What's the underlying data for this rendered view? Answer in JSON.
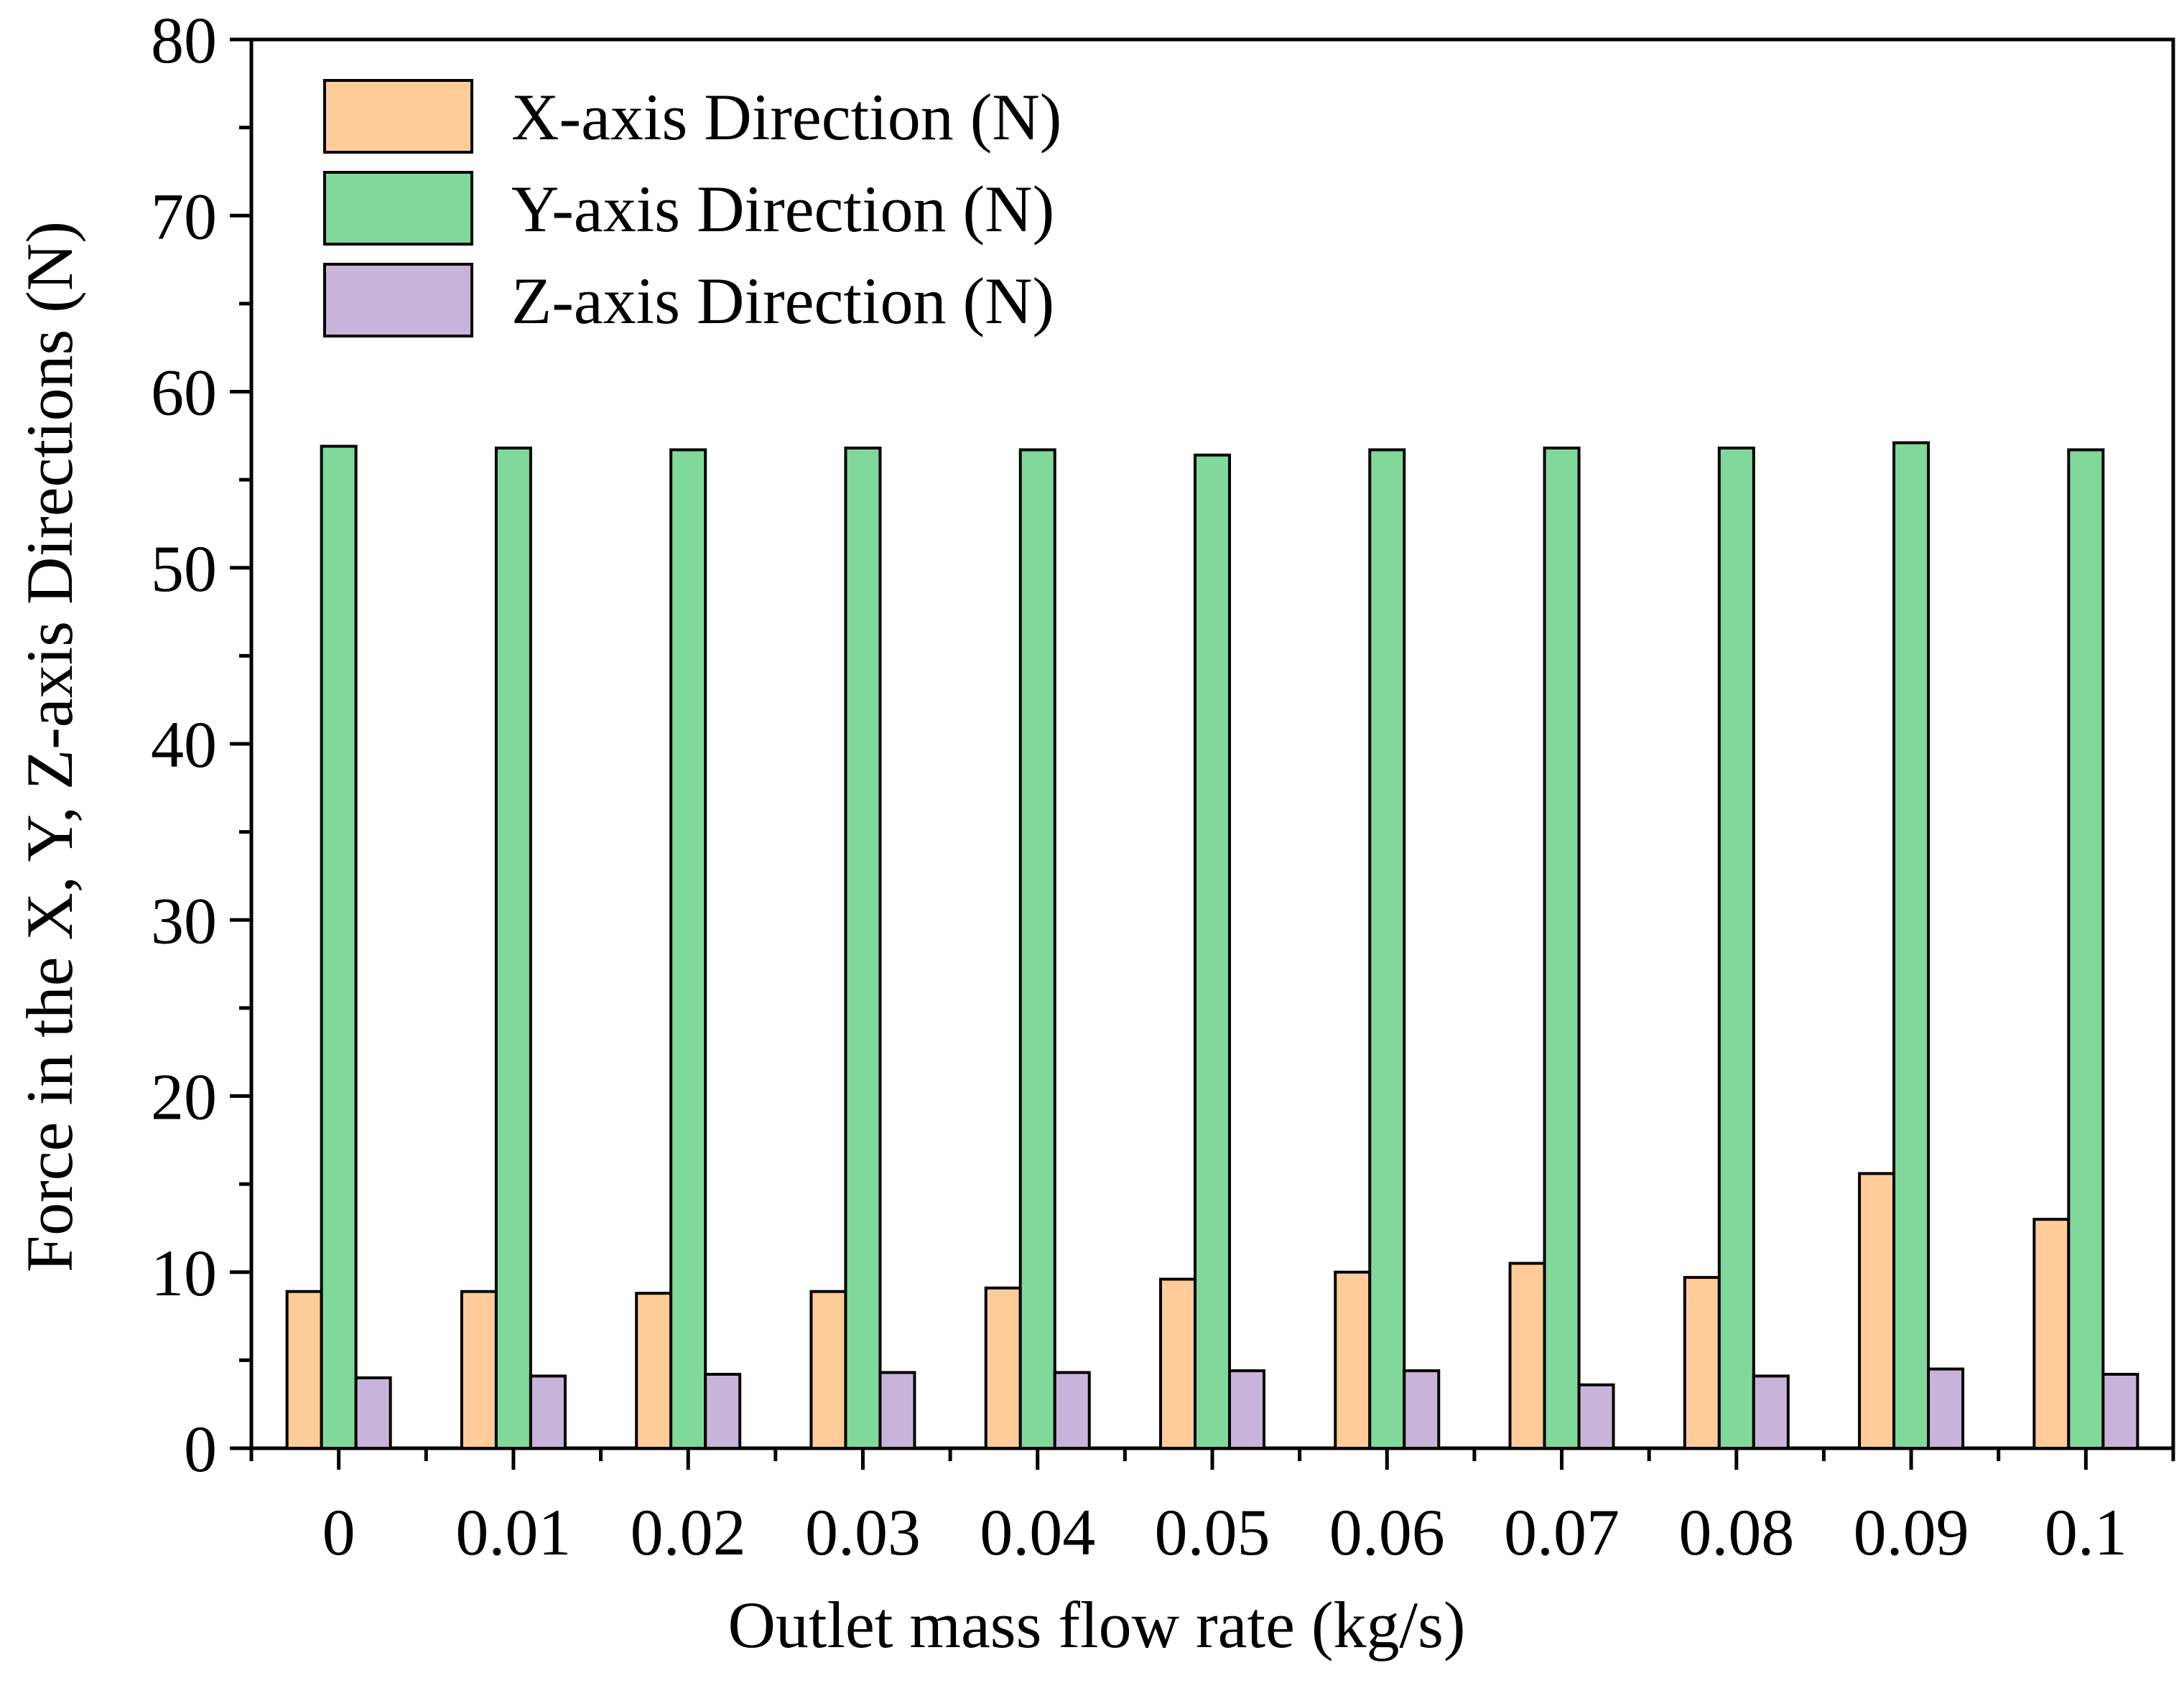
{
  "chart_data": {
    "type": "bar",
    "title": "",
    "xlabel": "Outlet mass flow rate (kg/s)",
    "ylabel": "Force in the X, Y, Z-axis Directions (N)",
    "ylim": [
      0,
      80
    ],
    "yticks": [
      "0",
      "10",
      "20",
      "30",
      "40",
      "50",
      "60",
      "70",
      "80"
    ],
    "categories": [
      "0",
      "0.01",
      "0.02",
      "0.03",
      "0.04",
      "0.05",
      "0.06",
      "0.07",
      "0.08",
      "0.09",
      "0.1"
    ],
    "grid": false,
    "legend_position": "top-left",
    "series": [
      {
        "name": "X-axis Direction (N)",
        "color": "#FFCC99",
        "values": [
          8.9,
          8.9,
          8.8,
          8.9,
          9.1,
          9.6,
          10.0,
          10.5,
          9.7,
          15.6,
          13.0
        ]
      },
      {
        "name": "Y-axis Direction (N)",
        "color": "#80D99A",
        "values": [
          56.9,
          56.8,
          56.7,
          56.8,
          56.7,
          56.4,
          56.7,
          56.8,
          56.8,
          57.1,
          56.7
        ]
      },
      {
        "name": "Z-axis Direction (N)",
        "color": "#C8B4DA",
        "values": [
          4.0,
          4.1,
          4.2,
          4.3,
          4.3,
          4.4,
          4.4,
          3.6,
          4.1,
          4.5,
          4.2
        ]
      }
    ]
  }
}
